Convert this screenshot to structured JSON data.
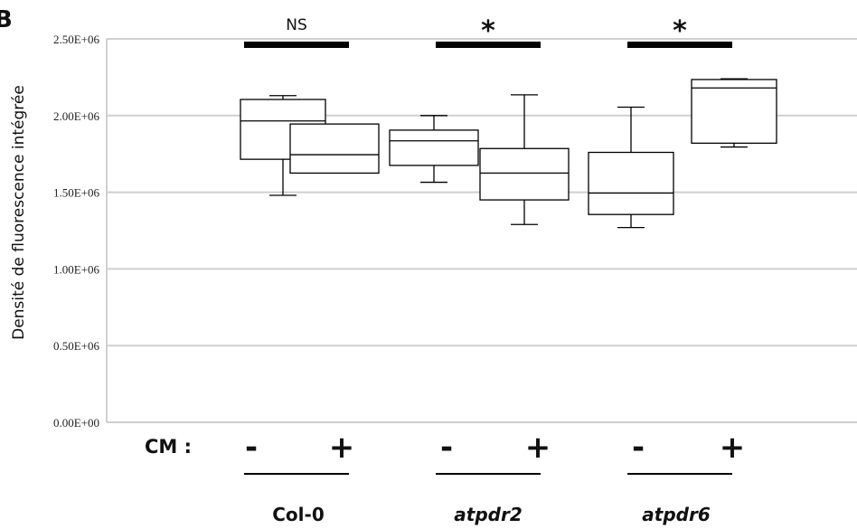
{
  "panel_letter": "B",
  "cm_label": "CM :",
  "chart_data": {
    "type": "box",
    "title": "",
    "xlabel": "",
    "ylabel": "Densité de fluorescence intégrée",
    "ylim": [
      0,
      2500000
    ],
    "grid": true,
    "yticks": [
      {
        "value": 0,
        "label": "0.00E+00"
      },
      {
        "value": 500000,
        "label": "0.50E+06"
      },
      {
        "value": 1000000,
        "label": "1.00E+06"
      },
      {
        "value": 1500000,
        "label": "1.50E+06"
      },
      {
        "value": 2000000,
        "label": "2.00E+06"
      },
      {
        "value": 2500000,
        "label": "2.50E+06"
      }
    ],
    "boxes": [
      {
        "group": "Col-0",
        "cm": "-",
        "min": 1480000,
        "q1": 1715000,
        "median": 1965000,
        "q3": 2105000,
        "max": 2130000
      },
      {
        "group": "Col-0",
        "cm": "+",
        "min": 1625000,
        "q1": 1625000,
        "median": 1745000,
        "q3": 1945000,
        "max": 1945000
      },
      {
        "group": "atpdr2",
        "cm": "-",
        "min": 1565000,
        "q1": 1675000,
        "median": 1835000,
        "q3": 1905000,
        "max": 2000000
      },
      {
        "group": "atpdr2",
        "cm": "+",
        "min": 1290000,
        "q1": 1450000,
        "median": 1625000,
        "q3": 1785000,
        "max": 2135000
      },
      {
        "group": "atpdr6",
        "cm": "-",
        "min": 1270000,
        "q1": 1355000,
        "median": 1495000,
        "q3": 1760000,
        "max": 2055000
      },
      {
        "group": "atpdr6",
        "cm": "+",
        "min": 1795000,
        "q1": 1820000,
        "median": 2180000,
        "q3": 2235000,
        "max": 2240000
      }
    ],
    "groups": [
      {
        "label": "Col-0",
        "italic": false,
        "significance": "NS",
        "cm_minus": "-",
        "cm_plus": "+"
      },
      {
        "label": "atpdr2",
        "italic": true,
        "significance": "*",
        "cm_minus": "-",
        "cm_plus": "+"
      },
      {
        "label": "atpdr6",
        "italic": true,
        "significance": "*",
        "cm_minus": "-",
        "cm_plus": "+"
      }
    ]
  }
}
